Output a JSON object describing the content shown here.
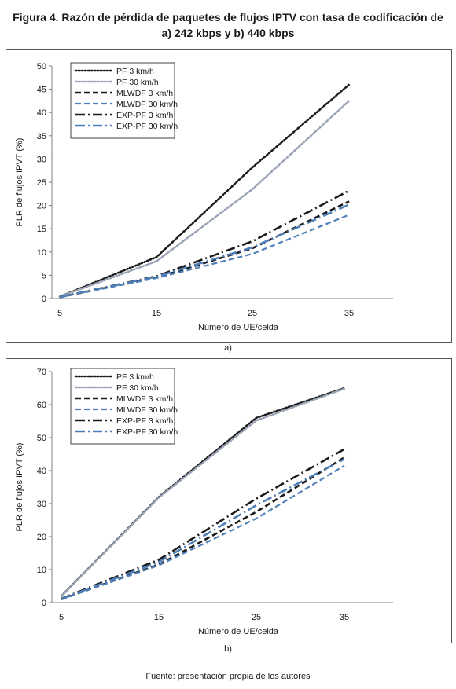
{
  "figure_title": "Figura 4. Razón de pérdida de paquetes de flujos IPTV con tasa de codificación de a) 242 kbps y b) 440 kbps",
  "source": "Fuente: presentación propia de los autores",
  "colors": {
    "black": "#1a1a1a",
    "gray": "#9aa3b5",
    "blue": "#4f7fb8"
  },
  "chart_data": [
    {
      "type": "line",
      "panel_label": "a)",
      "xlabel": "Número de UE/celda",
      "ylabel": "PLR de flujos IPVT (%)",
      "categories": [
        "5",
        "15",
        "25",
        "35"
      ],
      "ylim": [
        0,
        50
      ],
      "yticks": [
        0,
        5,
        10,
        15,
        20,
        25,
        30,
        35,
        40,
        45,
        50
      ],
      "legend_position": "top-left",
      "series": [
        {
          "name": "PF 3 km/h",
          "values": [
            0.4,
            8.9,
            28.2,
            46.0
          ]
        },
        {
          "name": "PF 30 km/h",
          "values": [
            0.4,
            8.0,
            23.5,
            42.5
          ]
        },
        {
          "name": "MLWDF 3 km/h",
          "values": [
            0.3,
            4.5,
            10.8,
            20.9
          ]
        },
        {
          "name": "MLWDF 30 km/h",
          "values": [
            0.3,
            4.4,
            9.6,
            18.0
          ]
        },
        {
          "name": "EXP-PF 3 km/h",
          "values": [
            0.3,
            4.8,
            12.3,
            23.2
          ]
        },
        {
          "name": "EXP-PF 30 km/h",
          "values": [
            0.3,
            4.7,
            11.0,
            20.2
          ]
        }
      ]
    },
    {
      "type": "line",
      "panel_label": "b)",
      "xlabel": "Número de UE/celda",
      "ylabel": "PLR de flujos IPVT (%)",
      "categories": [
        "5",
        "15",
        "25",
        "35"
      ],
      "ylim": [
        0,
        70
      ],
      "yticks": [
        0,
        10,
        20,
        30,
        40,
        50,
        60,
        70
      ],
      "legend_position": "top-left",
      "series": [
        {
          "name": "PF 3 km/h",
          "values": [
            2.0,
            32.0,
            56.0,
            65.0
          ]
        },
        {
          "name": "PF 30 km/h",
          "values": [
            1.9,
            31.8,
            55.2,
            64.8
          ]
        },
        {
          "name": "MLWDF 3 km/h",
          "values": [
            1.0,
            11.5,
            27.5,
            44.0
          ]
        },
        {
          "name": "MLWDF 30 km/h",
          "values": [
            1.0,
            11.3,
            25.5,
            41.5
          ]
        },
        {
          "name": "EXP-PF 3 km/h",
          "values": [
            1.2,
            13.0,
            31.5,
            46.5
          ]
        },
        {
          "name": "EXP-PF 30 km/h",
          "values": [
            1.1,
            12.3,
            29.5,
            43.5
          ]
        }
      ]
    }
  ]
}
